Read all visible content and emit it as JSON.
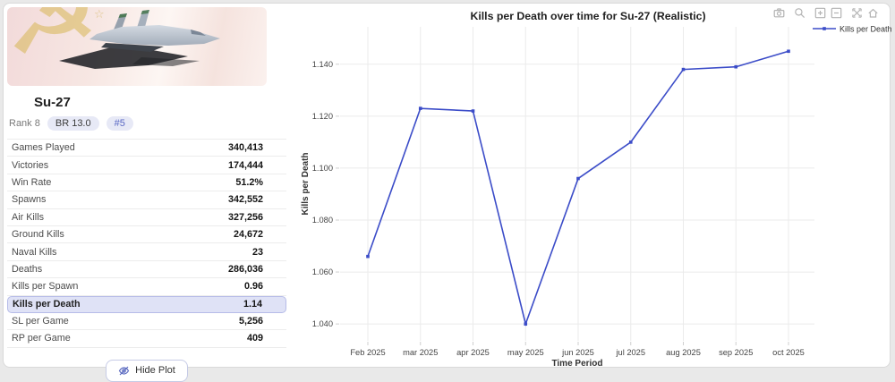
{
  "page": {
    "background": "#e9e9e9",
    "card_background": "#ffffff"
  },
  "vehicle": {
    "name": "Su-27",
    "rank_text": "Rank 8",
    "br_badge": "BR 13.0",
    "rank_position_badge": "#5",
    "banner_emblem": "☭",
    "banner_star": "☆"
  },
  "stats": {
    "rows": [
      {
        "label": "Games Played",
        "value": "340,413",
        "highlight": false
      },
      {
        "label": "Victories",
        "value": "174,444",
        "highlight": false
      },
      {
        "label": "Win Rate",
        "value": "51.2%",
        "highlight": false
      },
      {
        "label": "Spawns",
        "value": "342,552",
        "highlight": false
      },
      {
        "label": "Air Kills",
        "value": "327,256",
        "highlight": false
      },
      {
        "label": "Ground Kills",
        "value": "24,672",
        "highlight": false
      },
      {
        "label": "Naval Kills",
        "value": "23",
        "highlight": false
      },
      {
        "label": "Deaths",
        "value": "286,036",
        "highlight": false
      },
      {
        "label": "Kills per Spawn",
        "value": "0.96",
        "highlight": false
      },
      {
        "label": "Kills per Death",
        "value": "1.14",
        "highlight": true
      },
      {
        "label": "SL per Game",
        "value": "5,256",
        "highlight": false
      },
      {
        "label": "RP per Game",
        "value": "409",
        "highlight": false
      }
    ]
  },
  "actions": {
    "hide_plot_label": "Hide Plot",
    "hide_plot_icon": "eye-off-icon"
  },
  "modebar": {
    "color": "#b3b3b3",
    "icons": [
      "camera-icon",
      "zoom-icon",
      "zoom-in-icon",
      "zoom-out-icon",
      "autoscale-icon",
      "reset-axes-icon"
    ]
  },
  "chart_data": {
    "type": "line",
    "title": "Kills per Death over time for Su-27 (Realistic)",
    "xlabel": "Time Period",
    "ylabel": "Kills per Death",
    "categories": [
      "Feb 2025",
      "mar 2025",
      "apr 2025",
      "may 2025",
      "jun 2025",
      "jul 2025",
      "aug 2025",
      "sep 2025",
      "oct 2025"
    ],
    "series": [
      {
        "name": "Kills per Death",
        "color": "#3b4cc8",
        "values": [
          1.066,
          1.123,
          1.122,
          1.04,
          1.096,
          1.11,
          1.138,
          1.139,
          1.145
        ]
      }
    ],
    "yticks": [
      1.04,
      1.06,
      1.08,
      1.1,
      1.12,
      1.14
    ],
    "ylim": [
      1.0335,
      1.1544
    ],
    "grid": true,
    "legend_position": "right",
    "grid_color": "#ebebeb",
    "tick_color": "#444444"
  }
}
